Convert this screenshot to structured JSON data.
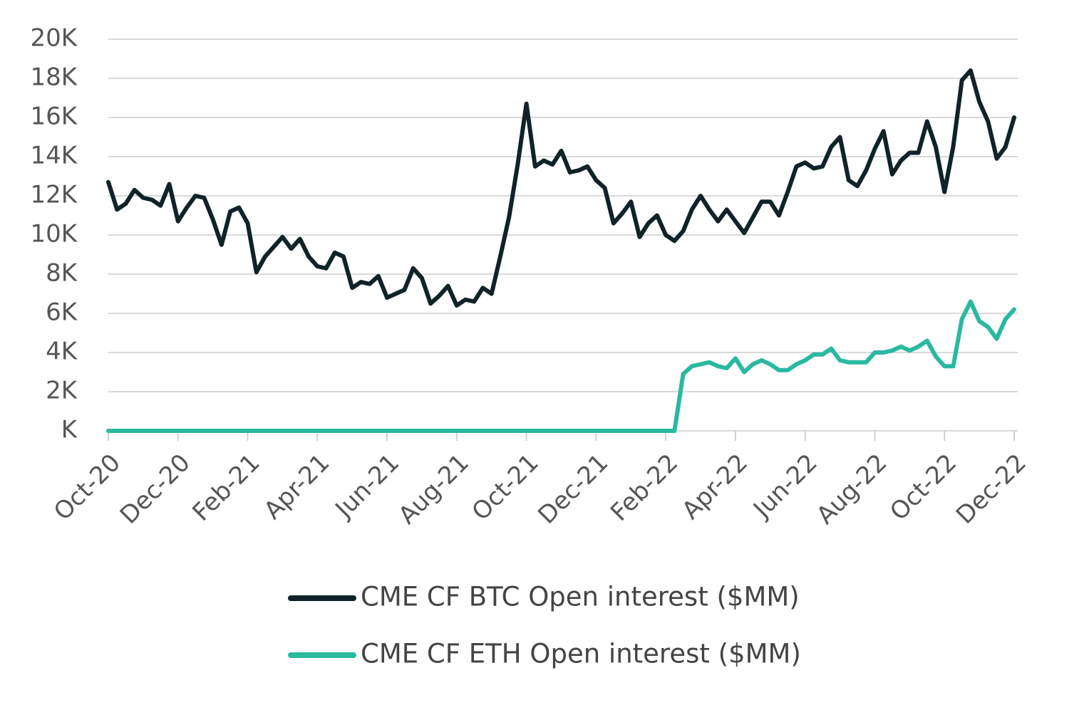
{
  "chart_data": {
    "type": "line",
    "categories": [
      "Oct-20",
      null,
      null,
      null,
      null,
      null,
      null,
      null,
      "Dec-20",
      null,
      null,
      null,
      null,
      null,
      null,
      null,
      "Feb-21",
      null,
      null,
      null,
      null,
      null,
      null,
      null,
      "Apr-21",
      null,
      null,
      null,
      null,
      null,
      null,
      null,
      "Jun-21",
      null,
      null,
      null,
      null,
      null,
      null,
      null,
      "Aug-21",
      null,
      null,
      null,
      null,
      null,
      null,
      null,
      "Oct-21",
      null,
      null,
      null,
      null,
      null,
      null,
      null,
      "Dec-21",
      null,
      null,
      null,
      null,
      null,
      null,
      null,
      "Feb-22",
      null,
      null,
      null,
      null,
      null,
      null,
      null,
      "Apr-22",
      null,
      null,
      null,
      null,
      null,
      null,
      null,
      "Jun-22",
      null,
      null,
      null,
      null,
      null,
      null,
      null,
      "Aug-22",
      null,
      null,
      null,
      null,
      null,
      null,
      null,
      "Oct-22",
      null,
      null,
      null,
      null,
      null,
      null,
      null,
      "Dec-22"
    ],
    "series": [
      {
        "name": "CME CF BTC Open interest ($MM)",
        "color": "#0f2328",
        "values": [
          12700,
          11300,
          11600,
          12300,
          11900,
          11800,
          11500,
          12600,
          10700,
          11400,
          12000,
          11900,
          10800,
          9500,
          11200,
          11400,
          10600,
          8100,
          8900,
          9400,
          9900,
          9300,
          9800,
          8900,
          8400,
          8300,
          9100,
          8900,
          7300,
          7600,
          7500,
          7900,
          6800,
          7000,
          7200,
          8300,
          7800,
          6500,
          6900,
          7400,
          6400,
          6700,
          6600,
          7300,
          7000,
          8900,
          10900,
          13600,
          16700,
          13500,
          13800,
          13600,
          14300,
          13200,
          13300,
          13500,
          12800,
          12400,
          10600,
          11100,
          11700,
          9900,
          10600,
          11000,
          10000,
          9700,
          10200,
          11300,
          12000,
          11300,
          10700,
          11300,
          10700,
          10100,
          10900,
          11700,
          11700,
          11000,
          12200,
          13500,
          13700,
          13400,
          13500,
          14500,
          15000,
          12800,
          12500,
          13300,
          14400,
          15300,
          13100,
          13800,
          14200,
          14200,
          15800,
          14500,
          12200,
          14500,
          17900,
          18400,
          16800,
          15800,
          13900,
          14500,
          16000
        ]
      },
      {
        "name": "CME CF ETH Open interest ($MM)",
        "color": "#2ab9a0",
        "values": [
          0,
          0,
          0,
          0,
          0,
          0,
          0,
          0,
          0,
          0,
          0,
          0,
          0,
          0,
          0,
          0,
          0,
          0,
          0,
          0,
          0,
          0,
          0,
          0,
          0,
          0,
          0,
          0,
          0,
          0,
          0,
          0,
          0,
          0,
          0,
          0,
          0,
          0,
          0,
          0,
          0,
          0,
          0,
          0,
          0,
          0,
          0,
          0,
          0,
          0,
          0,
          0,
          0,
          0,
          0,
          0,
          0,
          0,
          0,
          0,
          0,
          0,
          0,
          0,
          0,
          0,
          2900,
          3300,
          3400,
          3500,
          3300,
          3200,
          3700,
          3000,
          3400,
          3600,
          3400,
          3100,
          3100,
          3400,
          3600,
          3900,
          3900,
          4200,
          3600,
          3500,
          3500,
          3500,
          4000,
          4000,
          4100,
          4300,
          4100,
          4300,
          4600,
          3800,
          3300,
          3300,
          5700,
          6600,
          5600,
          5300,
          4700,
          5700,
          6200
        ]
      }
    ],
    "ylim": [
      0,
      20000
    ],
    "yticks": [
      {
        "value": 0,
        "label": "K"
      },
      {
        "value": 2000,
        "label": "2K"
      },
      {
        "value": 4000,
        "label": "4K"
      },
      {
        "value": 6000,
        "label": "6K"
      },
      {
        "value": 8000,
        "label": "8K"
      },
      {
        "value": 10000,
        "label": "10K"
      },
      {
        "value": 12000,
        "label": "12K"
      },
      {
        "value": 14000,
        "label": "14K"
      },
      {
        "value": 16000,
        "label": "16K"
      },
      {
        "value": 18000,
        "label": "18K"
      },
      {
        "value": 20000,
        "label": "20K"
      }
    ],
    "grid": true,
    "legend": "bottom"
  }
}
